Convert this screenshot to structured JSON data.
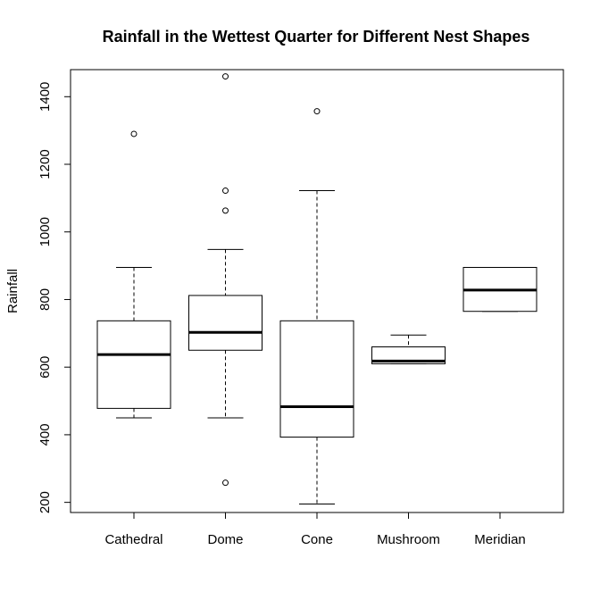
{
  "chart_data": {
    "type": "boxplot",
    "title": "Rainfall in the Wettest Quarter for Different Nest Shapes",
    "xlabel": "",
    "ylabel": "Rainfall",
    "ylim": [
      170,
      1480
    ],
    "yticks": [
      200,
      400,
      600,
      800,
      1000,
      1200,
      1400
    ],
    "grid": false,
    "categories": [
      "Cathedral",
      "Dome",
      "Cone",
      "Mushroom",
      "Meridian"
    ],
    "boxes": [
      {
        "name": "Cathedral",
        "whisker_low": 450,
        "q1": 478,
        "median": 637,
        "q3": 737,
        "whisker_high": 895,
        "outliers": [
          1290
        ]
      },
      {
        "name": "Dome",
        "whisker_low": 450,
        "q1": 650,
        "median": 703,
        "q3": 812,
        "whisker_high": 948,
        "outliers": [
          1460,
          1122,
          1063,
          258
        ]
      },
      {
        "name": "Cone",
        "whisker_low": 195,
        "q1": 393,
        "median": 483,
        "q3": 737,
        "whisker_high": 1122,
        "outliers": [
          1357
        ]
      },
      {
        "name": "Mushroom",
        "whisker_low": 610,
        "q1": 610,
        "median": 618,
        "q3": 660,
        "whisker_high": 695,
        "outliers": []
      },
      {
        "name": "Meridian",
        "whisker_low": 765,
        "q1": 765,
        "median": 828,
        "q3": 895,
        "whisker_high": 895,
        "outliers": []
      }
    ]
  }
}
